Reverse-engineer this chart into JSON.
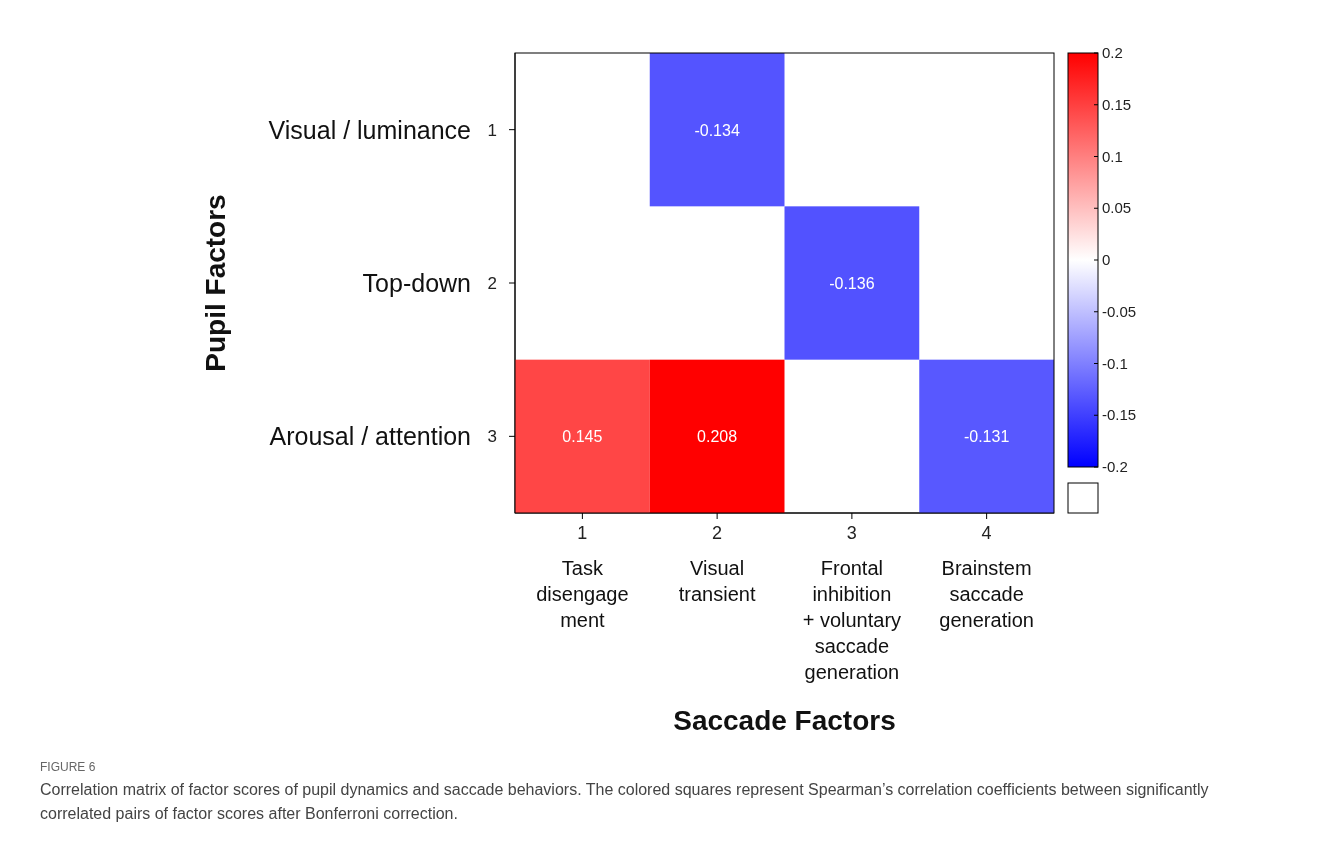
{
  "chart_data": {
    "type": "heatmap",
    "xlabel": "Saccade Factors",
    "ylabel": "Pupil Factors",
    "categories": [
      "1\nTask\ndisengage\nment",
      "2\nVisual\ntransient",
      "3\nFrontal\ninhibition\n+ voluntary\nsaccade\ngeneration",
      "4\nBrainstem\nsaccade\ngeneration"
    ],
    "y_categories": [
      "Visual / luminance",
      "Top-down",
      "Arousal / attention"
    ],
    "y2_categories": [
      "1",
      "2",
      "3"
    ],
    "cells": [
      [
        null,
        -0.134,
        null,
        null
      ],
      [
        null,
        null,
        -0.136,
        null
      ],
      [
        0.145,
        0.208,
        null,
        -0.131
      ]
    ],
    "data_labels": true,
    "clim": [
      -0.2,
      0.2
    ],
    "cticks": [
      -0.2,
      -0.15,
      -0.1,
      -0.05,
      0,
      0.05,
      0.1,
      0.15,
      0.2
    ],
    "annotations": [
      "FIGURE 6",
      "Correlation matrix of factor scores of pupil dynamics and saccade behaviors. The colored squares represent Spearman’s correlation coefficients between significantly correlated pairs of factor scores after Bonferroni correction."
    ]
  }
}
